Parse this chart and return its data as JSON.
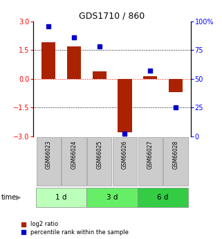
{
  "title": "GDS1710 / 860",
  "samples": [
    "GSM66023",
    "GSM66024",
    "GSM66025",
    "GSM66026",
    "GSM66027",
    "GSM66028"
  ],
  "log2_values": [
    1.9,
    1.7,
    0.4,
    -2.8,
    0.15,
    -0.7
  ],
  "percentile_values": [
    96,
    86,
    78,
    2,
    57,
    25
  ],
  "time_groups": [
    {
      "label": "1 d",
      "start": 0,
      "end": 2,
      "color": "#bbffbb"
    },
    {
      "label": "3 d",
      "start": 2,
      "end": 4,
      "color": "#66ee66"
    },
    {
      "label": "6 d",
      "start": 4,
      "end": 6,
      "color": "#33cc44"
    }
  ],
  "ylim_left": [
    -3,
    3
  ],
  "ylim_right": [
    0,
    100
  ],
  "bar_color": "#aa2200",
  "dot_color": "#0000cc",
  "left_yticks": [
    -3,
    -1.5,
    0,
    1.5,
    3
  ],
  "right_yticks": [
    0,
    25,
    50,
    75,
    100
  ],
  "figsize": [
    3.21,
    3.45
  ],
  "dpi": 100
}
